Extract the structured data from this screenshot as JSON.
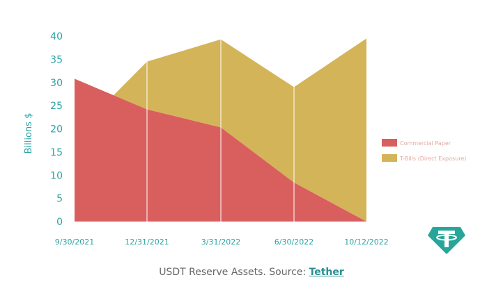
{
  "chart_data": {
    "type": "area",
    "x": [
      "9/30/2021",
      "12/31/2021",
      "3/31/2022",
      "6/30/2022",
      "10/12/2022"
    ],
    "series": [
      {
        "name": "Commercial Paper",
        "values": [
          30.8,
          24.2,
          20.3,
          8.4,
          0
        ],
        "color": "#d95f5f"
      },
      {
        "name": "T-Bills (Direct Exposure)",
        "values": [
          0,
          10.3,
          19.0,
          20.6,
          39.5
        ],
        "color": "#d4b458"
      }
    ],
    "stacked": true,
    "ylabel": "Billions $",
    "yticks": [
      0,
      5,
      10,
      15,
      20,
      25,
      30,
      35,
      40
    ],
    "ylim": [
      0,
      40
    ],
    "legend_position": "right",
    "grid": "vertical lines at x categories"
  },
  "caption": {
    "text": "USDT Reserve Assets. Source:",
    "link": "Tether"
  },
  "logo": {
    "name": "tether-logo-icon",
    "color": "#26a69a"
  }
}
